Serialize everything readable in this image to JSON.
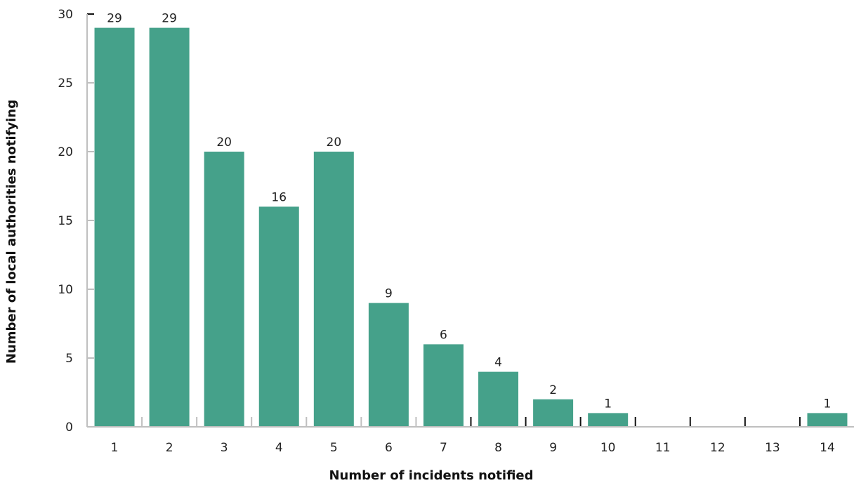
{
  "chart_data": {
    "type": "bar",
    "title": "",
    "xlabel": "Number of incidents notified",
    "ylabel": "Number of local authorities notifying",
    "categories": [
      "1",
      "2",
      "3",
      "4",
      "5",
      "6",
      "7",
      "8",
      "9",
      "10",
      "11",
      "12",
      "13",
      "14"
    ],
    "values": [
      29,
      29,
      20,
      16,
      20,
      9,
      6,
      4,
      2,
      1,
      0,
      0,
      0,
      1
    ],
    "data_labels": [
      "29",
      "29",
      "20",
      "16",
      "20",
      "9",
      "6",
      "4",
      "2",
      "1",
      "",
      "",
      "",
      "1"
    ],
    "ylim": [
      0,
      30
    ],
    "yticks": [
      "0",
      "5",
      "10",
      "15",
      "20",
      "25",
      "30"
    ],
    "grid": false,
    "legend": "none",
    "colors": {
      "bar": "#45a18a",
      "axis": "#bfbfbf",
      "tick_dark": "#111111"
    }
  }
}
